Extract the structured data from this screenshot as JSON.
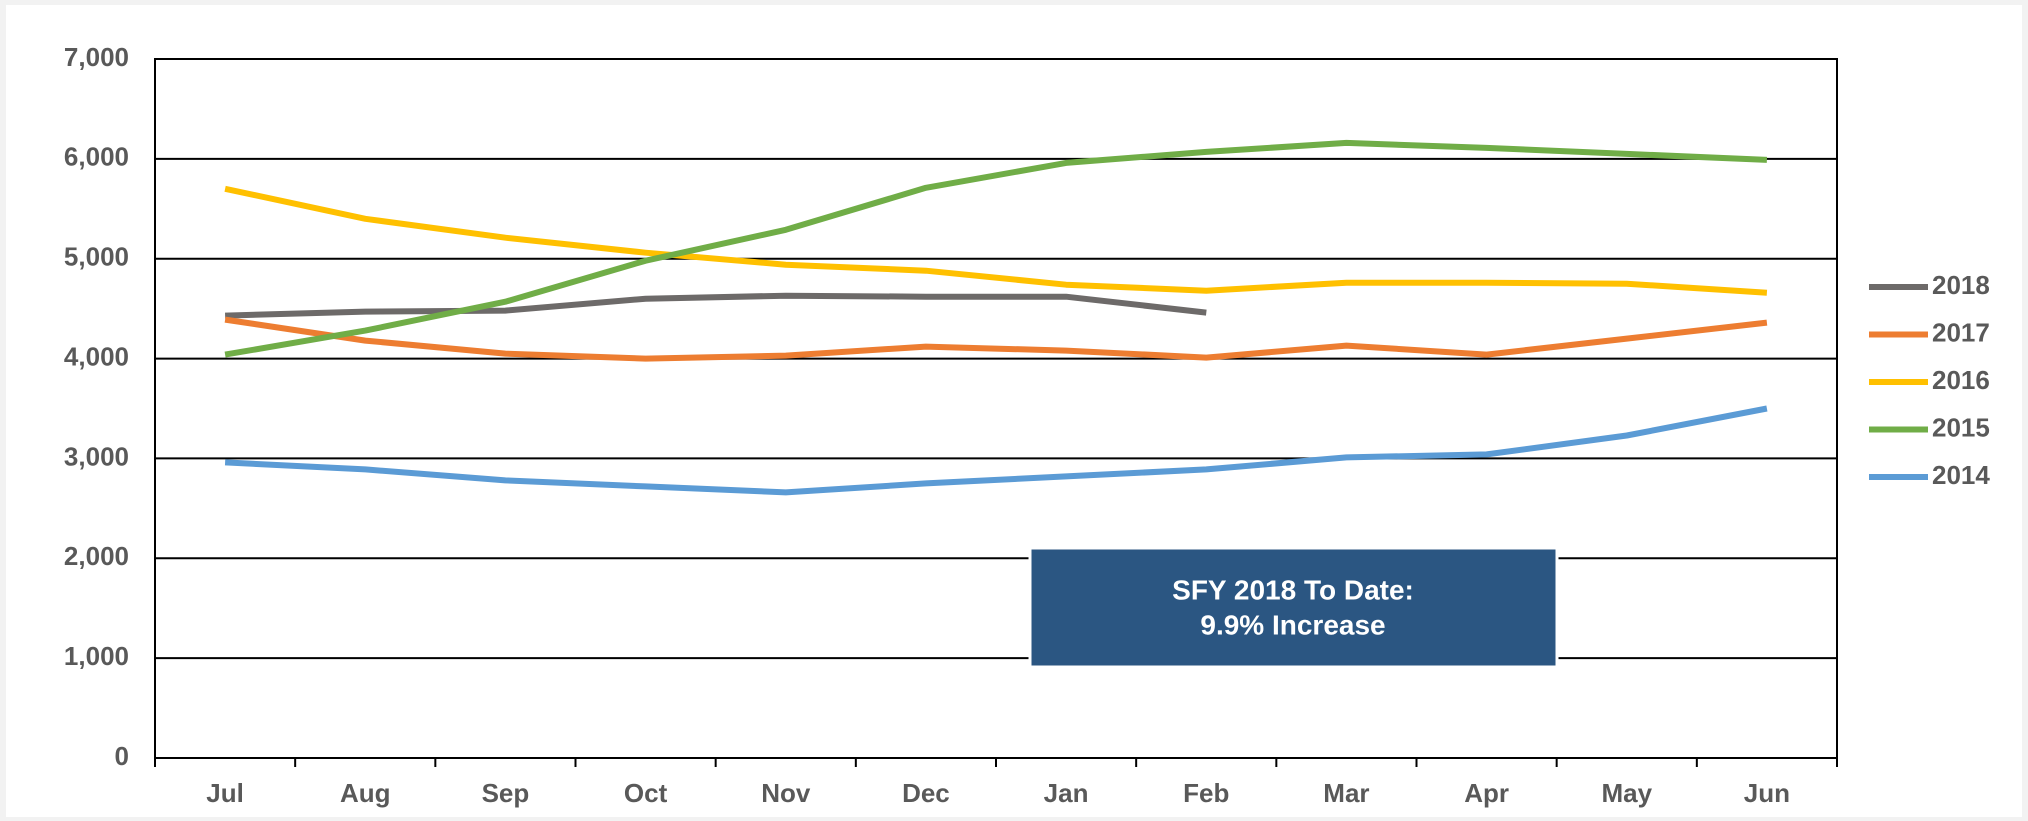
{
  "chart_data": {
    "type": "line",
    "categories": [
      "Jul",
      "Aug",
      "Sep",
      "Oct",
      "Nov",
      "Dec",
      "Jan",
      "Feb",
      "Mar",
      "Apr",
      "May",
      "Jun"
    ],
    "series": [
      {
        "name": "2018",
        "color": "#6d6a69",
        "values": [
          4430,
          4470,
          4480,
          4600,
          4630,
          4620,
          4620,
          4460,
          null,
          null,
          null,
          null
        ]
      },
      {
        "name": "2017",
        "color": "#ed7d31",
        "values": [
          4390,
          4180,
          4050,
          4000,
          4030,
          4120,
          4080,
          4010,
          4130,
          4040,
          4200,
          4360
        ]
      },
      {
        "name": "2016",
        "color": "#ffc000",
        "values": [
          5700,
          5400,
          5210,
          5060,
          4940,
          4880,
          4740,
          4680,
          4760,
          4760,
          4750,
          4660
        ]
      },
      {
        "name": "2015",
        "color": "#70ad47",
        "values": [
          4040,
          4280,
          4570,
          4980,
          5290,
          5710,
          5960,
          6070,
          6160,
          6110,
          6050,
          5990
        ]
      },
      {
        "name": "2014",
        "color": "#5b9bd5",
        "values": [
          2960,
          2890,
          2780,
          2720,
          2660,
          2750,
          2820,
          2890,
          3010,
          3040,
          3230,
          3500
        ]
      }
    ],
    "ylim": [
      0,
      7000
    ],
    "yticks": [
      0,
      {
        "value": 1000,
        "label": "1,000"
      },
      {
        "value": 2000,
        "label": "2,000"
      },
      {
        "value": 3000,
        "label": "3,000"
      },
      {
        "value": 4000,
        "label": "4,000"
      },
      {
        "value": 5000,
        "label": "5,000"
      },
      {
        "value": 6000,
        "label": "6,000"
      },
      {
        "value": 7000,
        "label": "7,000"
      }
    ],
    "grid": true,
    "legend": "right",
    "annotation": [
      "SFY 2018 To Date:",
      "9.9% Increase"
    ]
  }
}
